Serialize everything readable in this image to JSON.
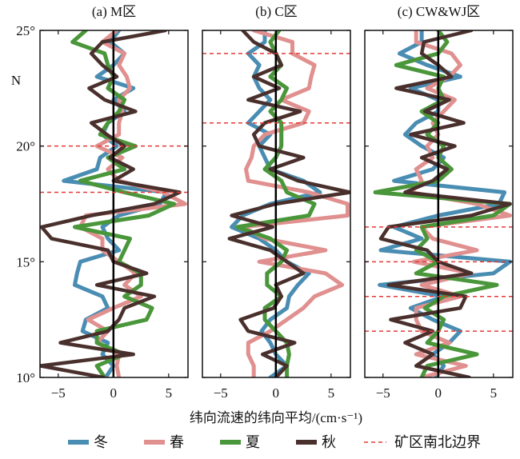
{
  "chart_data": {
    "type": "line",
    "y_unit_label": "N",
    "xlabel": "纬向流速的纬向平均/(cm·s⁻¹)",
    "xlim": [
      -6.65,
      6.75
    ],
    "ylim": [
      10,
      25
    ],
    "xticks": [
      -5,
      0,
      5
    ],
    "xtick_labels": [
      "−5",
      "0",
      "5"
    ],
    "yticks": [
      10,
      15,
      20,
      25
    ],
    "ytick_labels": [
      "10°",
      "15°",
      "20°",
      "25°"
    ],
    "latitudes": [
      10,
      10.5,
      11,
      11.5,
      12,
      12.5,
      13,
      13.5,
      14,
      14.5,
      15,
      15.5,
      16,
      16.5,
      17,
      17.5,
      18,
      18.5,
      19,
      19.5,
      20,
      20.5,
      21,
      21.5,
      22,
      22.5,
      23,
      23.5,
      24,
      24.5,
      25
    ],
    "legend": {
      "placement": "bottom",
      "items": [
        {
          "key": "winter",
          "label": "冬",
          "color": "#4a8db3"
        },
        {
          "key": "spring",
          "label": "春",
          "color": "#e0908f"
        },
        {
          "key": "summer",
          "label": "夏",
          "color": "#4a963a"
        },
        {
          "key": "autumn",
          "label": "秋",
          "color": "#4a302d"
        },
        {
          "key": "boundary",
          "label": "矿区南北边界",
          "color": "#e53935"
        }
      ]
    },
    "panels": [
      {
        "title": "(a) M区",
        "boundaries": [
          20,
          18
        ],
        "series": {
          "winter": [
            -0.7,
            0,
            -1,
            -0.5,
            -2.8,
            -2.5,
            -0.5,
            -1,
            -3.5,
            -3.3,
            -3,
            0.5,
            -0.5,
            -1,
            0.5,
            4.2,
            4.8,
            -4.5,
            -1.5,
            -1.2,
            0.3,
            -1,
            -0.5,
            1,
            0,
            1.8,
            -1.5,
            0,
            1,
            -0.3,
            0.5
          ],
          "spring": [
            0.5,
            0.3,
            0.5,
            -1.5,
            -0.5,
            -2.3,
            0,
            2.5,
            1,
            2,
            0.5,
            -1,
            -1,
            -3,
            -2.5,
            6.5,
            4.5,
            0.5,
            -0.5,
            0.8,
            -1.5,
            0.5,
            0.5,
            0.8,
            0.5,
            1.5,
            1.2,
            0.5,
            1,
            -1,
            0.3
          ],
          "summer": [
            -0.8,
            -1.5,
            1,
            -1.5,
            -1.5,
            3,
            3.5,
            1,
            2.5,
            2.5,
            0.5,
            1,
            1.5,
            -3.5,
            3.2,
            5.5,
            1,
            -3,
            1,
            -0.5,
            2,
            -1.2,
            -0.5,
            0.5,
            1,
            -0.5,
            0,
            -0.5,
            -0.8,
            -3.7,
            -2.5
          ],
          "autumn": [
            -0.9,
            -6.6,
            1.8,
            -4.8,
            -0.5,
            0.5,
            1,
            3.7,
            -1.5,
            3,
            0,
            -0.5,
            -5.6,
            -6.5,
            -2,
            3.7,
            6,
            0,
            1.8,
            -0.3,
            1,
            -0.6,
            -2,
            2,
            -0.8,
            -2.2,
            0.3,
            -1,
            -2,
            -1,
            4.7
          ]
        }
      },
      {
        "title": "(b) C区",
        "boundaries": [
          24,
          21
        ],
        "series": {
          "winter": [
            -0.5,
            1,
            0,
            -0.5,
            -1.3,
            -0.5,
            1,
            1.2,
            2,
            3,
            1,
            0,
            -1.5,
            -4,
            -3,
            -0.5,
            4,
            2.5,
            -0.5,
            -1,
            -1.5,
            -0.5,
            -2.5,
            -1.5,
            -0.5,
            -1.5,
            -2,
            -1.5,
            -2.5,
            -1,
            -1
          ],
          "spring": [
            -2,
            -2,
            -2.5,
            -2.5,
            -0.5,
            1,
            2.5,
            3.5,
            6,
            4.5,
            -1.5,
            4.5,
            -1,
            -3,
            6.5,
            6.5,
            3,
            -2.5,
            -2.7,
            -2.2,
            -2,
            -1,
            2.5,
            3,
            0.5,
            3,
            3.2,
            3.5,
            1.5,
            1.5,
            -2
          ],
          "summer": [
            1,
            1,
            1.2,
            1,
            0,
            -1,
            -1,
            0.5,
            -0.8,
            -0.8,
            0.5,
            1,
            -0.5,
            -3.5,
            3,
            3.5,
            1,
            0.5,
            -1,
            0,
            0.5,
            0.5,
            0.5,
            -0.5,
            0.5,
            1,
            -0.5,
            0.5,
            0,
            -0.5,
            0.3
          ],
          "autumn": [
            0,
            1,
            -1.2,
            1.7,
            -2.5,
            -3.2,
            -0.2,
            0.5,
            0,
            2.5,
            1,
            -0.5,
            -4.2,
            -0.3,
            -4,
            0,
            6.7,
            2,
            -0.5,
            2.5,
            -1.5,
            -2,
            -1,
            2.2,
            -2.5,
            0.3,
            -2,
            0.5,
            0,
            -2,
            -3
          ]
        }
      },
      {
        "title": "(c) CW&WJ区",
        "boundaries": [
          16.5,
          15,
          13.5,
          12
        ],
        "series": {
          "winter": [
            -0.2,
            0.5,
            -0.5,
            1,
            2,
            -0.5,
            -2.5,
            0.5,
            -5.3,
            5,
            6.5,
            -5.2,
            -1.5,
            -4,
            0,
            5.5,
            6,
            -4,
            -0.5,
            0.5,
            -1.5,
            -3,
            -2,
            0,
            0,
            -2.5,
            2,
            -1,
            -3.5,
            -1.5,
            -1.5
          ],
          "spring": [
            -1.5,
            2.5,
            -2,
            1,
            -1.5,
            -2,
            -2,
            2,
            -1.5,
            3,
            -2.2,
            3.5,
            -0.5,
            -1.5,
            6.5,
            3.5,
            -2.5,
            -1.5,
            -2,
            -0.5,
            -1,
            0,
            -0.5,
            0.5,
            1.5,
            -1,
            1,
            2,
            1.2,
            -2,
            -2
          ],
          "summer": [
            -1.5,
            -1,
            3.5,
            -1,
            0,
            0.5,
            -1.2,
            0.5,
            5.3,
            -2,
            0,
            -2,
            -1,
            -1.5,
            5,
            6.5,
            -5.7,
            0,
            1.2,
            0,
            0.5,
            -1,
            0,
            -1.5,
            0.5,
            0,
            0.5,
            -3.8,
            0,
            0.8,
            0
          ],
          "autumn": [
            2.8,
            -2,
            -0.5,
            -3,
            -0.5,
            -4.3,
            2,
            2.5,
            -4.5,
            3,
            0,
            -1,
            -5.2,
            -4.5,
            3,
            6.5,
            -3,
            -0.5,
            0.8,
            -1.5,
            1.5,
            -2.5,
            2.3,
            -1.2,
            1,
            -3.8,
            1.2,
            0,
            -1.5,
            -1.3,
            3
          ]
        }
      }
    ]
  }
}
